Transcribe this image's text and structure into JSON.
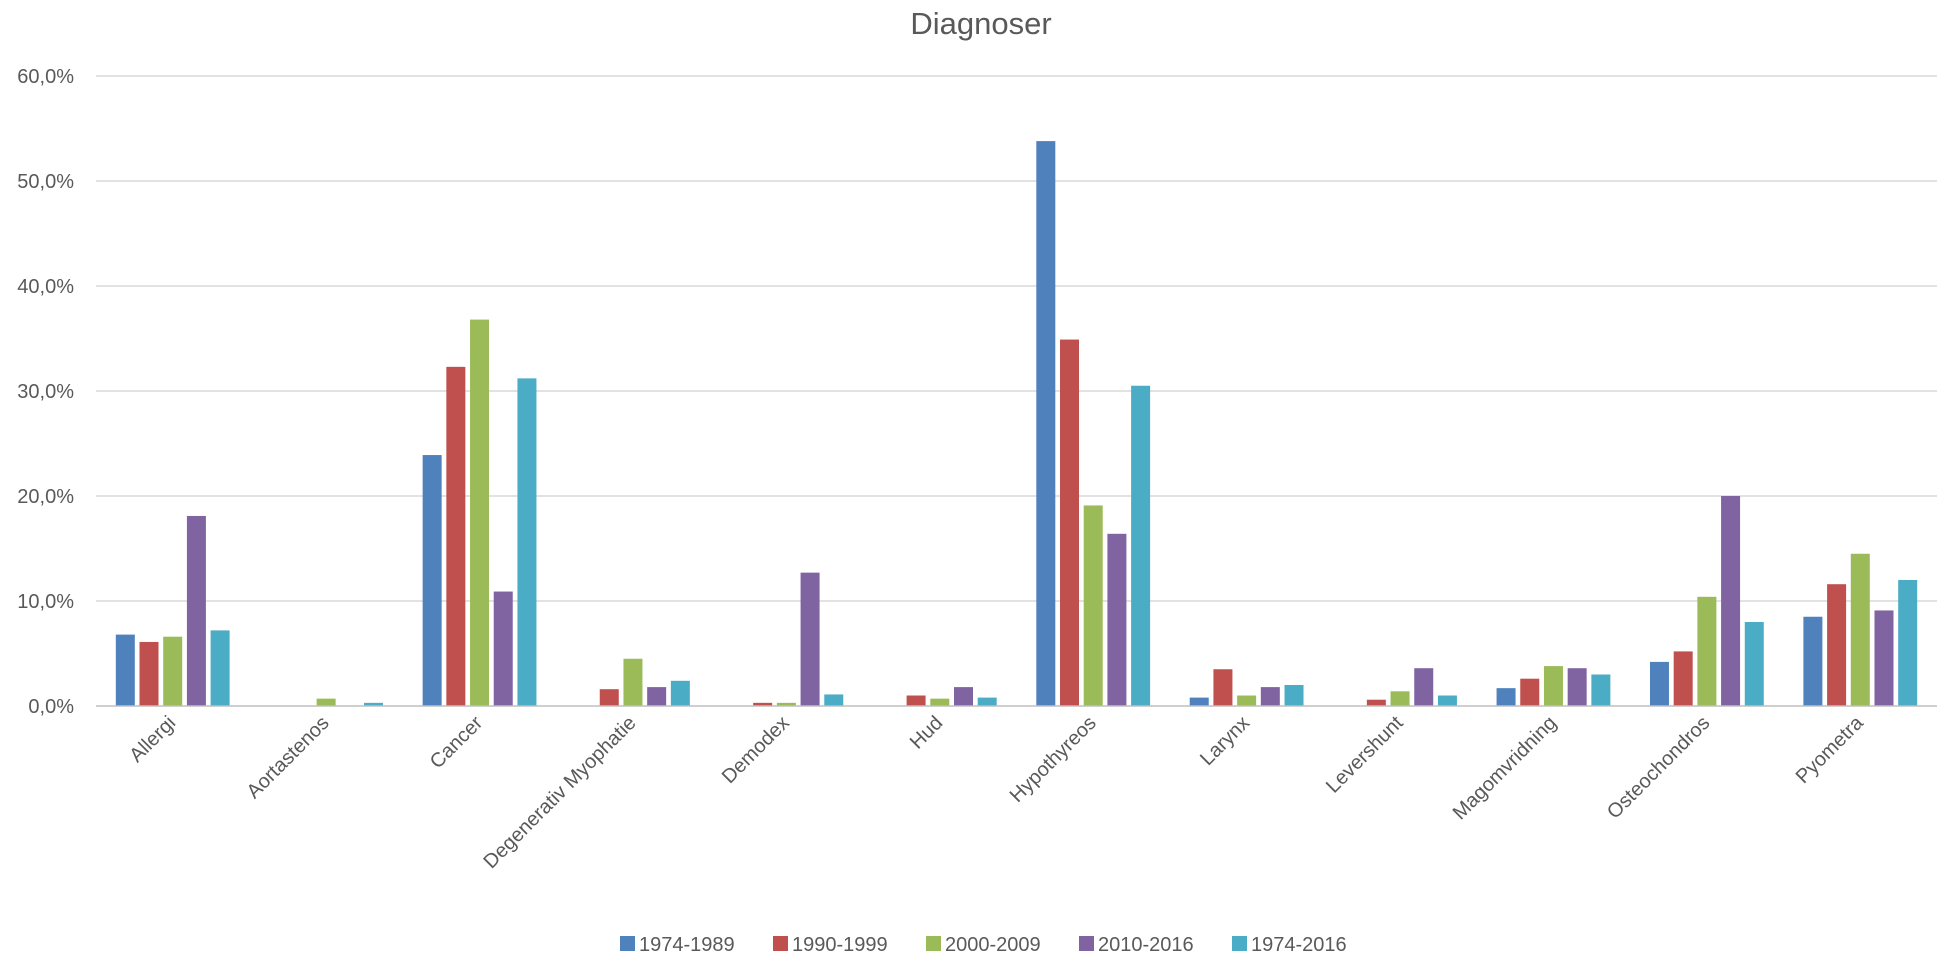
{
  "chart_data": {
    "type": "bar",
    "title": "Diagnoser",
    "xlabel": "",
    "ylabel": "",
    "ylim": [
      0,
      60
    ],
    "yticks": [
      0,
      10,
      20,
      30,
      40,
      50,
      60
    ],
    "ytick_labels": [
      "0,0%",
      "10,0%",
      "20,0%",
      "30,0%",
      "40,0%",
      "50,0%",
      "60,0%"
    ],
    "grid": true,
    "legend_position": "bottom",
    "categories": [
      "Allergi",
      "Aortastenos",
      "Cancer",
      "Degenerativ Myophatie",
      "Demodex",
      "Hud",
      "Hypothyreos",
      "Larynx",
      "Levershunt",
      "Magomvridning",
      "Osteochondros",
      "Pyometra"
    ],
    "series": [
      {
        "name": "1974-1989",
        "color": "#4f81bd",
        "values": [
          6.8,
          0,
          23.9,
          0,
          0,
          0,
          53.8,
          0.8,
          0,
          1.7,
          4.2,
          8.5
        ]
      },
      {
        "name": "1990-1999",
        "color": "#c0504d",
        "values": [
          6.1,
          0,
          32.3,
          1.6,
          0.3,
          1.0,
          34.9,
          3.5,
          0.6,
          2.6,
          5.2,
          11.6
        ]
      },
      {
        "name": "2000-2009",
        "color": "#9bbb59",
        "values": [
          6.6,
          0.7,
          36.8,
          4.5,
          0.3,
          0.7,
          19.1,
          1.0,
          1.4,
          3.8,
          10.4,
          14.5
        ]
      },
      {
        "name": "2010-2016",
        "color": "#8064a2",
        "values": [
          18.1,
          0,
          10.9,
          1.8,
          12.7,
          1.8,
          16.4,
          1.8,
          3.6,
          3.6,
          20.0,
          9.1
        ]
      },
      {
        "name": "1974-2016",
        "color": "#4bacc6",
        "values": [
          7.2,
          0.3,
          31.2,
          2.4,
          1.1,
          0.8,
          30.5,
          2.0,
          1.0,
          3.0,
          8.0,
          12.0
        ]
      }
    ]
  }
}
